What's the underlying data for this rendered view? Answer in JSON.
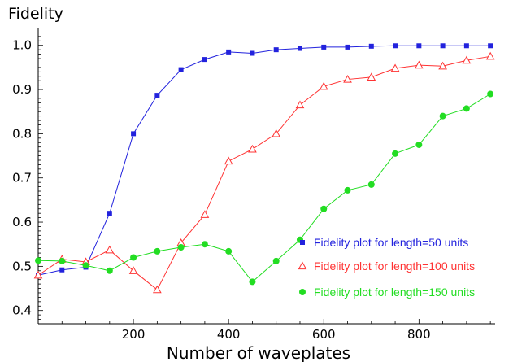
{
  "chart_data": {
    "type": "scatter",
    "title": "",
    "ylabel": "Fidelity",
    "xlabel": "Number of waveplates",
    "xlim": [
      0,
      960
    ],
    "ylim": [
      0.37,
      1.04
    ],
    "x_ticks": [
      200,
      400,
      600,
      800
    ],
    "x_tick_labels": [
      "200",
      "400",
      "600",
      "800"
    ],
    "y_ticks": [
      0.4,
      0.5,
      0.6,
      0.7,
      0.8,
      0.9,
      1.0
    ],
    "y_tick_labels": [
      "0.4",
      "0.5",
      "0.6",
      "0.7",
      "0.8",
      "0.9",
      "1.0"
    ],
    "grid": false,
    "legend_position": "lower-right",
    "series": [
      {
        "name": "Fidelity plot for length=50 units",
        "color": "#2222dd",
        "marker": "square",
        "x": [
          0,
          50,
          100,
          150,
          200,
          250,
          300,
          350,
          400,
          450,
          500,
          550,
          600,
          650,
          700,
          750,
          800,
          850,
          900,
          950
        ],
        "y": [
          0.48,
          0.492,
          0.498,
          0.62,
          0.8,
          0.887,
          0.945,
          0.968,
          0.985,
          0.982,
          0.99,
          0.993,
          0.996,
          0.996,
          0.998,
          0.999,
          0.999,
          0.999,
          0.999,
          0.999
        ]
      },
      {
        "name": "Fidelity plot for length=100 units",
        "color": "#ff3333",
        "marker": "triangle-open",
        "x": [
          0,
          50,
          100,
          150,
          200,
          250,
          300,
          350,
          400,
          450,
          500,
          550,
          600,
          650,
          700,
          750,
          800,
          850,
          900,
          950
        ],
        "y": [
          0.48,
          0.516,
          0.51,
          0.537,
          0.49,
          0.447,
          0.553,
          0.617,
          0.738,
          0.765,
          0.8,
          0.865,
          0.907,
          0.923,
          0.928,
          0.948,
          0.955,
          0.953,
          0.966,
          0.975
        ]
      },
      {
        "name": "Fidelity plot for length=150 units",
        "color": "#22dd22",
        "marker": "circle",
        "x": [
          0,
          50,
          100,
          150,
          200,
          250,
          300,
          350,
          400,
          450,
          500,
          550,
          600,
          650,
          700,
          750,
          800,
          850,
          900,
          950
        ],
        "y": [
          0.513,
          0.512,
          0.502,
          0.49,
          0.52,
          0.534,
          0.543,
          0.55,
          0.534,
          0.465,
          0.512,
          0.56,
          0.63,
          0.672,
          0.685,
          0.755,
          0.775,
          0.84,
          0.857,
          0.89
        ]
      }
    ]
  }
}
